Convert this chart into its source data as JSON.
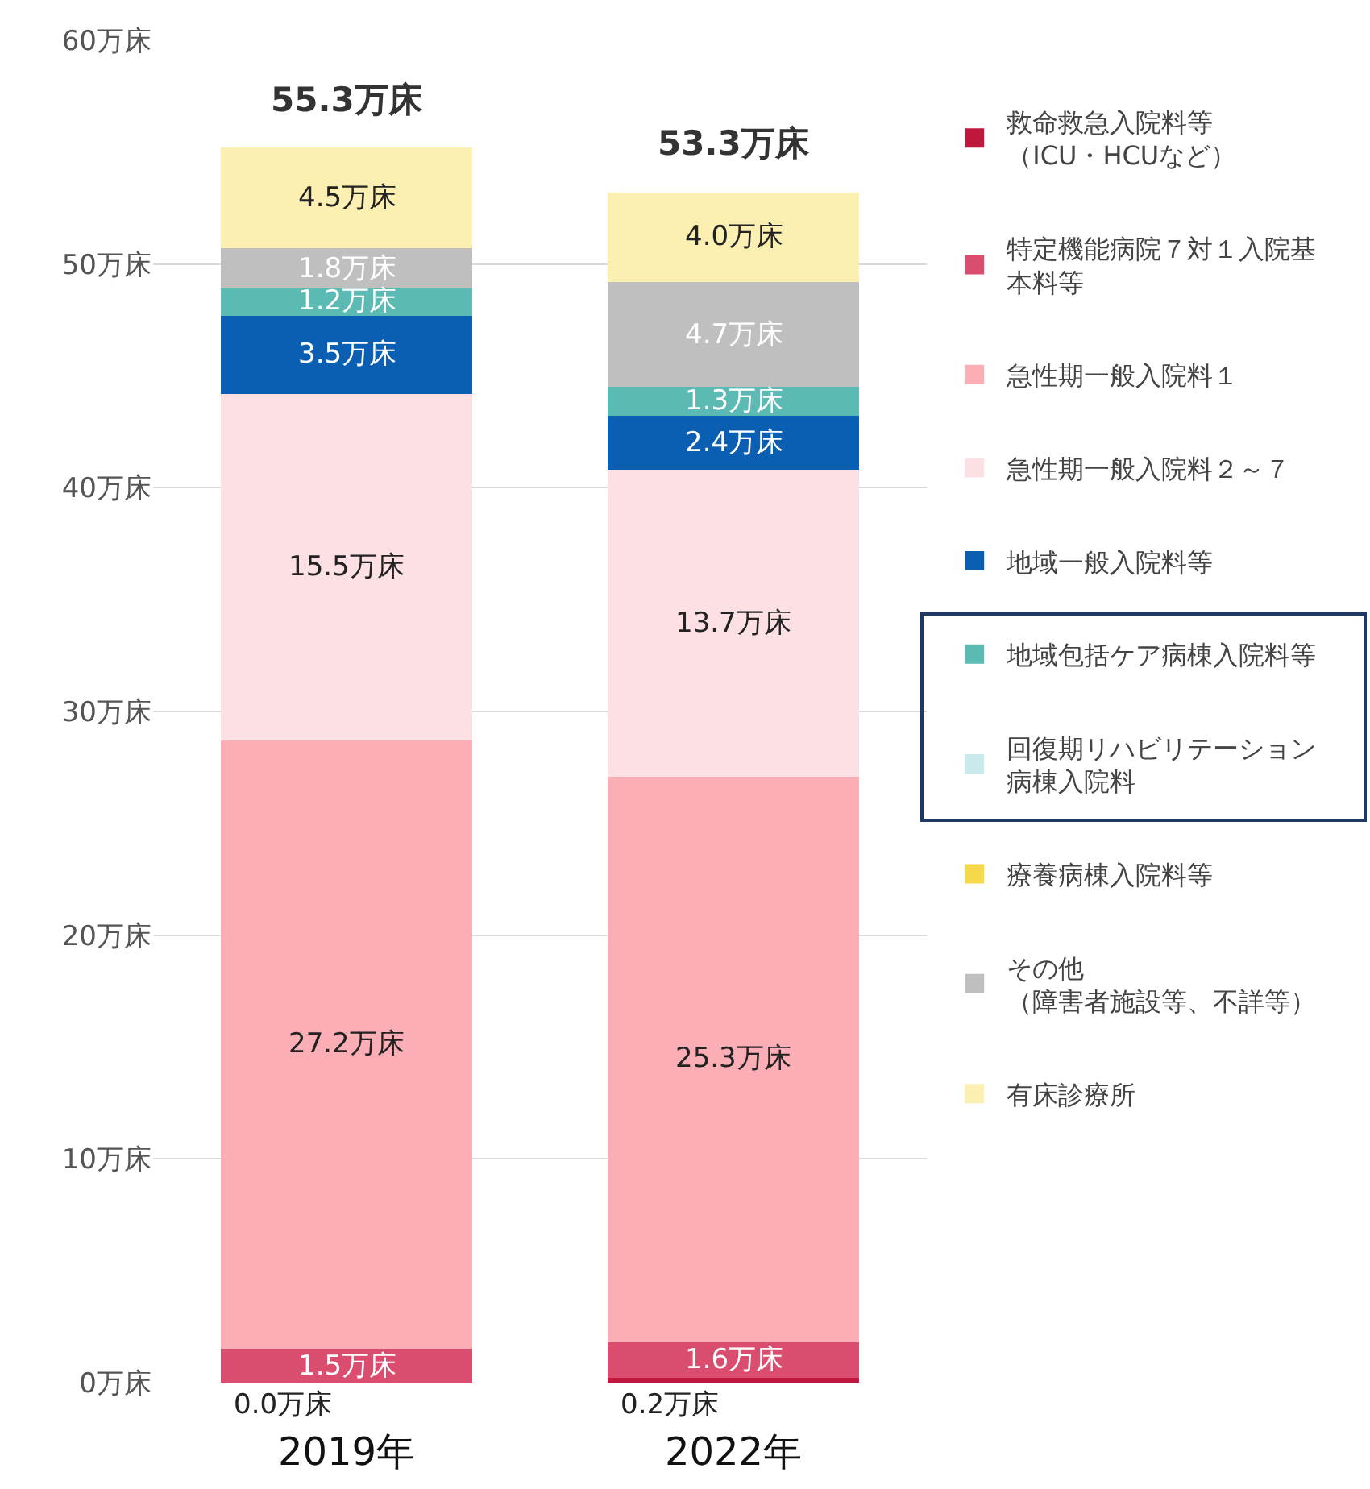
{
  "chart_data": {
    "type": "bar",
    "stacked": true,
    "categories": [
      "2019年",
      "2022年"
    ],
    "ylim": [
      0,
      60
    ],
    "yticks": [
      {
        "value": 0,
        "label": "0万床"
      },
      {
        "value": 10,
        "label": "10万床"
      },
      {
        "value": 20,
        "label": "20万床"
      },
      {
        "value": 30,
        "label": "30万床"
      },
      {
        "value": 40,
        "label": "40万床"
      },
      {
        "value": 50,
        "label": "50万床"
      },
      {
        "value": 60,
        "label": "60万床"
      }
    ],
    "grid": "y",
    "legend": "right",
    "series": [
      {
        "name": "救命救急入院料等（ICU・HCUなど）",
        "color": "#c0173f",
        "values": [
          0.0,
          0.2
        ],
        "value_labels": [
          "0.0万床",
          "0.2万床"
        ]
      },
      {
        "name": "特定機能病院７対１入院基本料等",
        "color": "#da4d6e",
        "values": [
          1.5,
          1.6
        ],
        "value_labels": [
          "1.5万床",
          "1.6万床"
        ]
      },
      {
        "name": "急性期一般入院料１",
        "color": "#fbaeb6",
        "values": [
          27.2,
          25.3
        ],
        "value_labels": [
          "27.2万床",
          "25.3万床"
        ]
      },
      {
        "name": "急性期一般入院料２～７",
        "color": "#fde0e4",
        "values": [
          15.5,
          13.7
        ],
        "value_labels": [
          "15.5万床",
          "13.7万床"
        ]
      },
      {
        "name": "地域一般入院料等",
        "color": "#0b5fb3",
        "values": [
          3.5,
          2.4
        ],
        "value_labels": [
          "3.5万床",
          "2.4万床"
        ]
      },
      {
        "name": "地域包括ケア病棟入院料等",
        "color": "#5bbab3",
        "values": [
          1.2,
          1.3
        ],
        "value_labels": [
          "1.2万床",
          "1.3万床"
        ]
      },
      {
        "name": "回復期リハビリテーション病棟入院料",
        "color": "#c8eaea",
        "values": [
          null,
          null
        ]
      },
      {
        "name": "療養病棟入院料等",
        "color": "#f6d94a",
        "values": [
          null,
          null
        ]
      },
      {
        "name": "その他（障害者施設等、不詳等）",
        "color": "#bfbfbf",
        "values": [
          1.8,
          4.7
        ],
        "value_labels": [
          "1.8万床",
          "4.7万床"
        ]
      },
      {
        "name": "有床診療所",
        "color": "#fcefb2",
        "values": [
          4.5,
          4.0
        ],
        "value_labels": [
          "4.5万床",
          "4.0万床"
        ]
      }
    ],
    "totals": [
      "55.3万床",
      "53.3万床"
    ]
  }
}
